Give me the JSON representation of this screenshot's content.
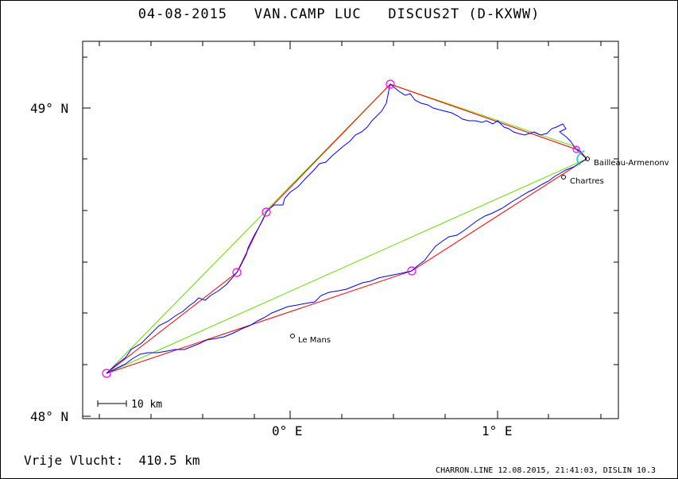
{
  "header": {
    "date": "04-08-2015",
    "pilot": "VAN.CAMP LUC",
    "glider": "DISCUS2T (D-KXWW)"
  },
  "footer": {
    "distance_label": "Vrije Vlucht:",
    "distance_value": "410.5 km",
    "credit": "CHARRON.LINE 12.08.2015, 21:41:03, DISLIN 10.3"
  },
  "map": {
    "lat_labels": [
      "49° N",
      "48° N"
    ],
    "lon_labels": [
      "0° E",
      "1° E"
    ],
    "scale_label": "10 km",
    "places": [
      "Bailleau-Armenonv",
      "Chartres",
      "Le Mans"
    ],
    "colors": {
      "track": "#0000ff",
      "task_line": "#ff0000",
      "straight_line": "#66dd00",
      "turnpoint": "#ff00ff",
      "start": "#00cccc"
    }
  }
}
